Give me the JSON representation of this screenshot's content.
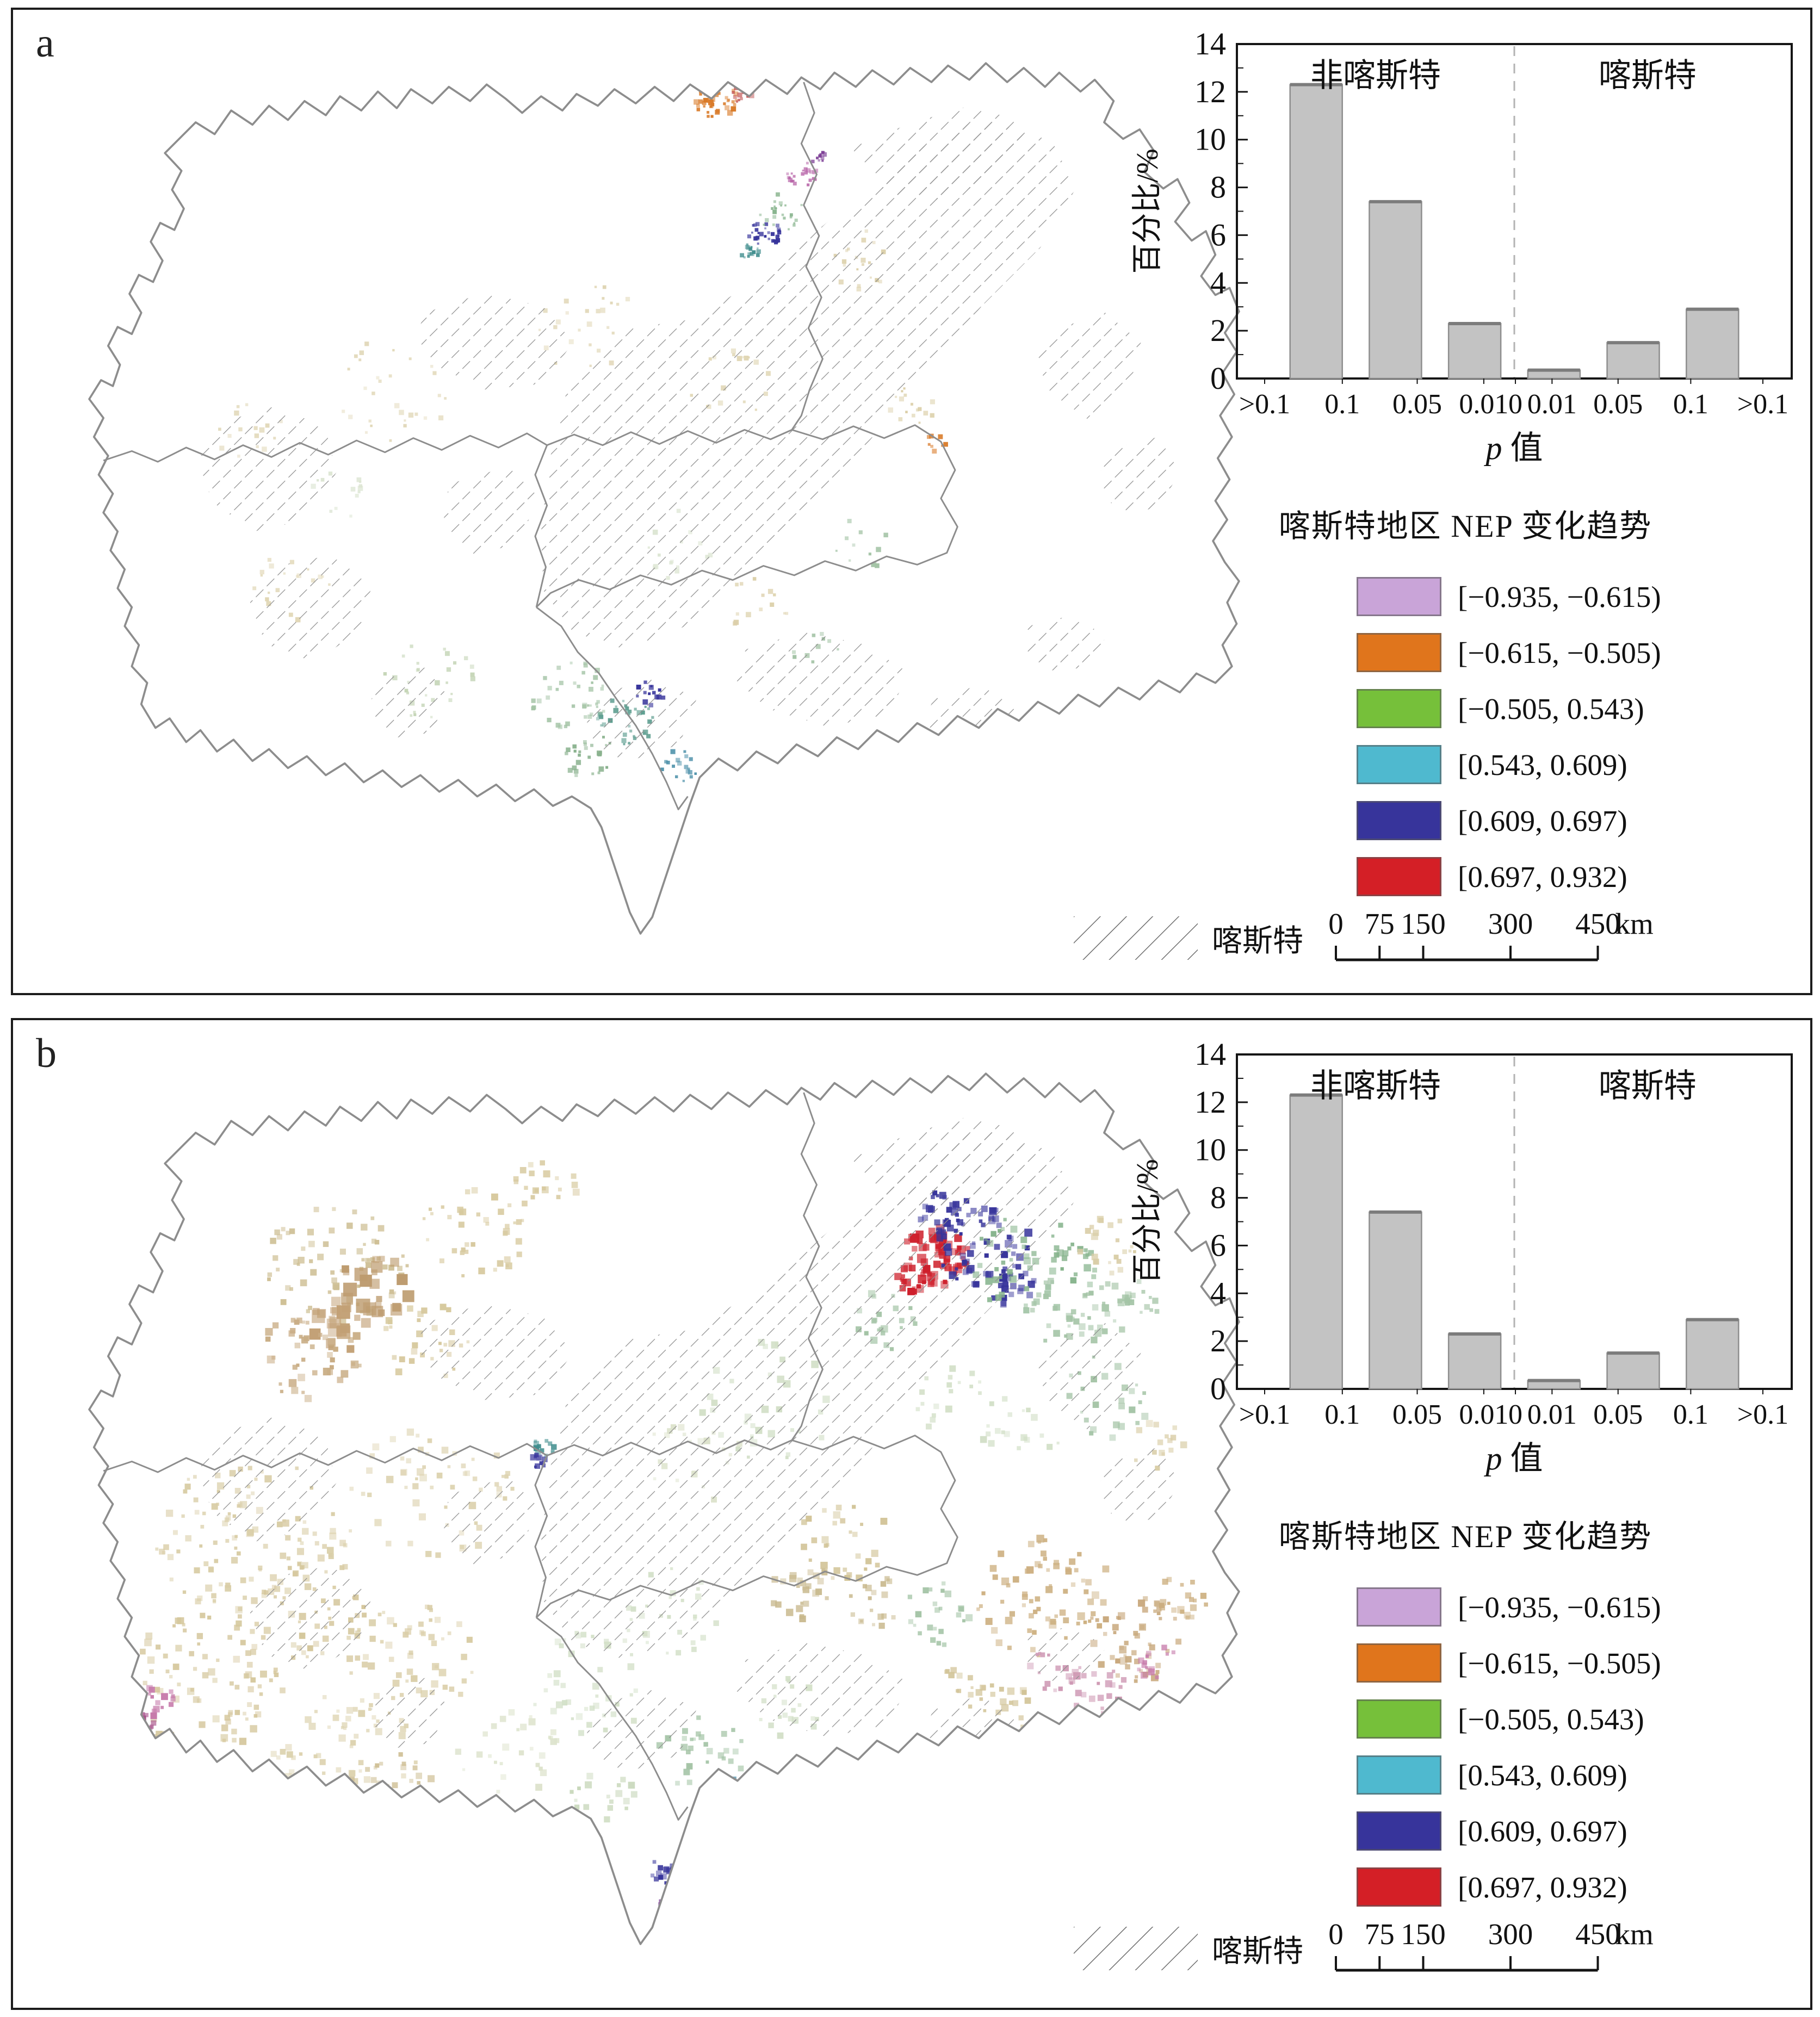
{
  "figure": {
    "panels": [
      {
        "label": "a"
      },
      {
        "label": "b"
      }
    ]
  },
  "chart_data": [
    {
      "type": "bar",
      "panel": "a",
      "ylabel": "百分比/%",
      "xlabel": "p 值",
      "ylim": [
        0,
        14
      ],
      "yticks": [
        0,
        2,
        4,
        6,
        8,
        10,
        12,
        14
      ],
      "x_tick_labels": [
        ">0.1",
        "0.1",
        "0.05",
        "0.01",
        "0",
        "0.01",
        "0.05",
        "0.1",
        ">0.1"
      ],
      "region_labels": {
        "left": "非喀斯特",
        "right": "喀斯特"
      },
      "values": [
        12.3,
        7.4,
        2.3,
        0.35,
        1.5,
        2.9
      ],
      "bar_color": "#c3c3c3",
      "grid": "off",
      "divider_position": "center"
    },
    {
      "type": "bar",
      "panel": "b",
      "ylabel": "百分比/%",
      "xlabel": "p 值",
      "ylim": [
        0,
        14
      ],
      "yticks": [
        0,
        2,
        4,
        6,
        8,
        10,
        12,
        14
      ],
      "x_tick_labels": [
        ">0.1",
        "0.1",
        "0.05",
        "0.01",
        "0",
        "0.01",
        "0.05",
        "0.1",
        ">0.1"
      ],
      "region_labels": {
        "left": "非喀斯特",
        "right": "喀斯特"
      },
      "values": [
        12.3,
        7.4,
        2.3,
        0.35,
        1.5,
        2.9
      ],
      "bar_color": "#c3c3c3",
      "grid": "off",
      "divider_position": "center"
    }
  ],
  "legend": {
    "title": "喀斯特地区 NEP 变化趋势",
    "items": [
      {
        "color": "#c9a4d8",
        "label": "[−0.935, −0.615)"
      },
      {
        "color": "#e0751c",
        "label": "[−0.615, −0.505)"
      },
      {
        "color": "#76c03a",
        "label": "[−0.505, 0.543)"
      },
      {
        "color": "#4fb9cf",
        "label": "[0.543, 0.609)"
      },
      {
        "color": "#37349b",
        "label": "[0.609, 0.697)"
      },
      {
        "color": "#d41f26",
        "label": "[0.697, 0.932)"
      }
    ],
    "karst_item": {
      "label": "喀斯特",
      "pattern": "diagonal-hatch"
    }
  },
  "scalebar": {
    "tick_labels": [
      "0",
      "75",
      "150",
      "300",
      "450"
    ],
    "values_km": [
      0,
      75,
      150,
      300,
      450
    ],
    "unit": "km"
  }
}
